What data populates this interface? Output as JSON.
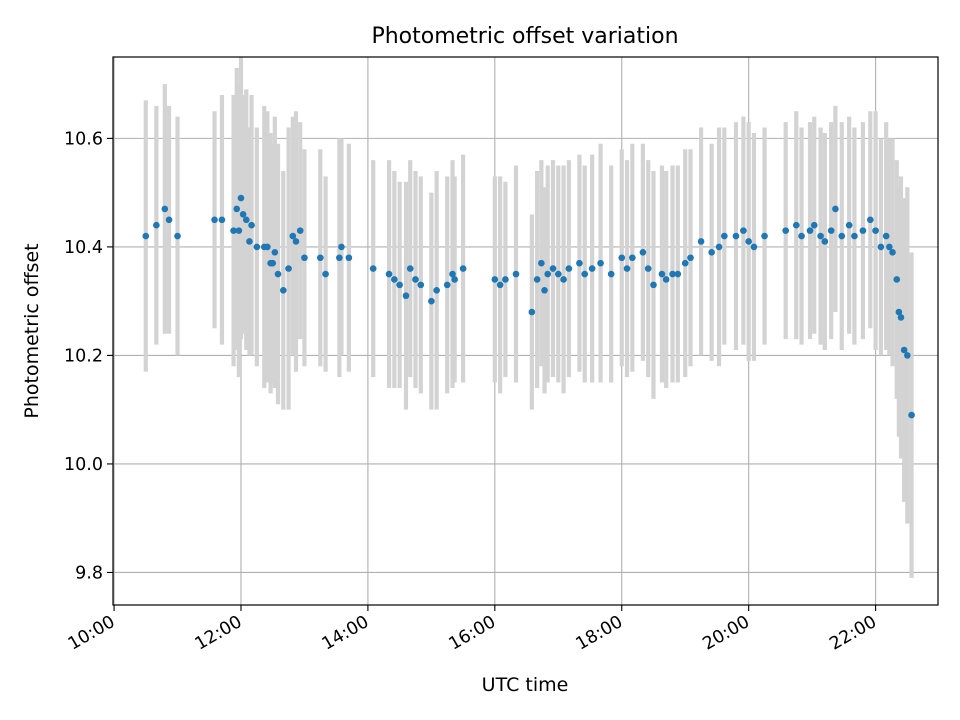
{
  "chart_data": {
    "type": "scatter",
    "title": "Photometric offset variation",
    "xlabel": "UTC time",
    "ylabel": "Photometric offset",
    "x_ticks": [
      "10:00",
      "12:00",
      "14:00",
      "16:00",
      "18:00",
      "20:00",
      "22:00"
    ],
    "y_ticks": [
      "9.8",
      "10.0",
      "10.2",
      "10.4",
      "10.6"
    ],
    "xlim": [
      "09:59",
      "22:59"
    ],
    "ylim": [
      9.74,
      10.75
    ],
    "grid": true,
    "error_bar_color": "#d3d3d3",
    "marker_color": "#1f77b4",
    "series": [
      {
        "x": [
          "10:30",
          "10:40",
          "10:48",
          "10:52",
          "11:00",
          "11:35",
          "11:42",
          "11:53",
          "11:56",
          "11:58",
          "12:00",
          "12:02",
          "12:05",
          "12:08",
          "12:10",
          "12:15",
          "12:22",
          "12:25",
          "12:28",
          "12:30",
          "12:32",
          "12:35",
          "12:40",
          "12:45",
          "12:49",
          "12:52",
          "12:56",
          "13:00",
          "13:15",
          "13:20",
          "13:33",
          "13:35",
          "13:42",
          "14:05",
          "14:20",
          "14:25",
          "14:30",
          "14:36",
          "14:40",
          "14:45",
          "14:50",
          "15:00",
          "15:05",
          "15:15",
          "15:20",
          "15:22",
          "15:30",
          "16:00",
          "16:05",
          "16:10",
          "16:20",
          "16:35",
          "16:40",
          "16:44",
          "16:47",
          "16:50",
          "16:55",
          "17:00",
          "17:05",
          "17:10",
          "17:20",
          "17:25",
          "17:32",
          "17:40",
          "17:50",
          "18:00",
          "18:05",
          "18:10",
          "18:20",
          "18:25",
          "18:30",
          "18:38",
          "18:42",
          "18:48",
          "18:53",
          "19:00",
          "19:05",
          "19:15",
          "19:25",
          "19:32",
          "19:37",
          "19:48",
          "19:55",
          "20:00",
          "20:05",
          "20:15",
          "20:35",
          "20:45",
          "20:50",
          "20:58",
          "21:02",
          "21:08",
          "21:12",
          "21:18",
          "21:22",
          "21:28",
          "21:35",
          "21:40",
          "21:48",
          "21:55",
          "22:00",
          "22:05",
          "22:10",
          "22:13",
          "22:16",
          "22:20",
          "22:22",
          "22:24",
          "22:27",
          "22:30",
          "22:34"
        ],
        "y": [
          10.42,
          10.44,
          10.47,
          10.45,
          10.42,
          10.45,
          10.45,
          10.43,
          10.47,
          10.43,
          10.49,
          10.46,
          10.45,
          10.41,
          10.44,
          10.4,
          10.4,
          10.4,
          10.37,
          10.37,
          10.39,
          10.35,
          10.32,
          10.36,
          10.42,
          10.41,
          10.43,
          10.38,
          10.38,
          10.35,
          10.38,
          10.4,
          10.38,
          10.36,
          10.35,
          10.34,
          10.33,
          10.31,
          10.36,
          10.34,
          10.33,
          10.3,
          10.32,
          10.33,
          10.35,
          10.34,
          10.36,
          10.34,
          10.33,
          10.34,
          10.35,
          10.28,
          10.34,
          10.37,
          10.32,
          10.35,
          10.36,
          10.35,
          10.34,
          10.36,
          10.37,
          10.35,
          10.36,
          10.37,
          10.35,
          10.38,
          10.36,
          10.38,
          10.39,
          10.36,
          10.33,
          10.35,
          10.34,
          10.35,
          10.35,
          10.37,
          10.38,
          10.41,
          10.39,
          10.4,
          10.42,
          10.42,
          10.43,
          10.41,
          10.4,
          10.42,
          10.43,
          10.44,
          10.42,
          10.43,
          10.44,
          10.42,
          10.41,
          10.43,
          10.47,
          10.42,
          10.44,
          10.42,
          10.43,
          10.45,
          10.43,
          10.4,
          10.42,
          10.4,
          10.39,
          10.34,
          10.28,
          10.27,
          10.21,
          10.2,
          10.09
        ],
        "err": [
          0.25,
          0.22,
          0.23,
          0.21,
          0.22,
          0.2,
          0.23,
          0.25,
          0.26,
          0.27,
          0.26,
          0.22,
          0.24,
          0.21,
          0.24,
          0.22,
          0.26,
          0.25,
          0.24,
          0.22,
          0.25,
          0.24,
          0.22,
          0.26,
          0.22,
          0.24,
          0.2,
          0.2,
          0.2,
          0.18,
          0.22,
          0.2,
          0.21,
          0.2,
          0.21,
          0.2,
          0.19,
          0.21,
          0.2,
          0.2,
          0.2,
          0.2,
          0.22,
          0.2,
          0.21,
          0.19,
          0.21,
          0.19,
          0.2,
          0.18,
          0.2,
          0.18,
          0.2,
          0.19,
          0.19,
          0.2,
          0.2,
          0.2,
          0.21,
          0.2,
          0.2,
          0.2,
          0.21,
          0.22,
          0.2,
          0.2,
          0.2,
          0.21,
          0.2,
          0.2,
          0.21,
          0.2,
          0.2,
          0.2,
          0.2,
          0.21,
          0.2,
          0.21,
          0.2,
          0.22,
          0.2,
          0.21,
          0.21,
          0.22,
          0.21,
          0.2,
          0.2,
          0.21,
          0.2,
          0.2,
          0.2,
          0.2,
          0.2,
          0.2,
          0.19,
          0.21,
          0.2,
          0.2,
          0.2,
          0.2,
          0.22,
          0.2,
          0.21,
          0.2,
          0.21,
          0.22,
          0.23,
          0.26,
          0.28,
          0.31,
          0.3
        ]
      }
    ]
  }
}
